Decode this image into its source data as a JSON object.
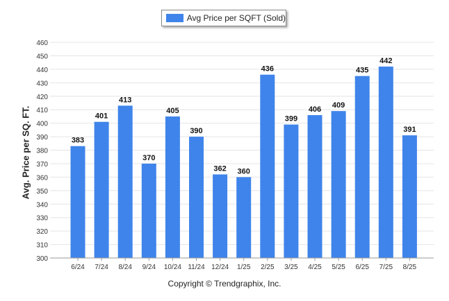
{
  "legend": {
    "label": "Avg Price per SQFT (Sold)"
  },
  "footer": {
    "copyright": "Copyright © Trendgraphix, Inc."
  },
  "colors": {
    "bar": "#3f84ea",
    "grid": "#e4e4e4",
    "axis": "#9a9a9a"
  },
  "chart_data": {
    "type": "bar",
    "ylabel": "Avg. Price per SQ. FT.",
    "xlabel": "",
    "ylim": [
      300,
      460
    ],
    "ytick_step": 10,
    "grid": true,
    "legend_position": "top-center",
    "categories": [
      "6/24",
      "7/24",
      "8/24",
      "9/24",
      "10/24",
      "11/24",
      "12/24",
      "1/25",
      "2/25",
      "3/25",
      "4/25",
      "5/25",
      "6/25",
      "7/25",
      "8/25"
    ],
    "series": [
      {
        "name": "Avg Price per SQFT (Sold)",
        "values": [
          383,
          401,
          413,
          370,
          405,
          390,
          362,
          360,
          436,
          399,
          406,
          409,
          435,
          442,
          391
        ]
      }
    ]
  }
}
